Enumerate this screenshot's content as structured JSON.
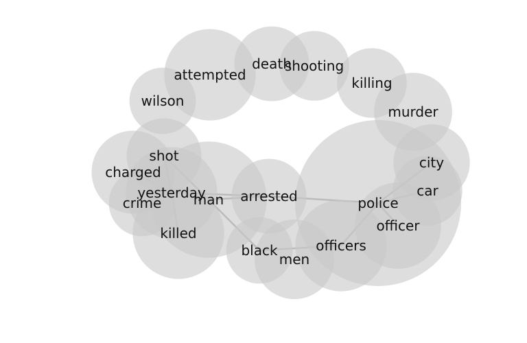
{
  "colors": {
    "bubble": "#c8c8c8",
    "edge": "#a9a9a9",
    "text": "#111111",
    "background": "#ffffff"
  },
  "diagram": {
    "type": "word-cooccurrence-bubble-network",
    "nodes": [
      {
        "id": "attempted",
        "label": "attempted",
        "weight": 0.55
      },
      {
        "id": "death",
        "label": "death",
        "weight": 0.45
      },
      {
        "id": "shooting",
        "label": "shooting",
        "weight": 0.42
      },
      {
        "id": "killing",
        "label": "killing",
        "weight": 0.42
      },
      {
        "id": "murder",
        "label": "murder",
        "weight": 0.47
      },
      {
        "id": "wilson",
        "label": "wilson",
        "weight": 0.4
      },
      {
        "id": "shot",
        "label": "shot",
        "weight": 0.45
      },
      {
        "id": "charged",
        "label": "charged",
        "weight": 0.5
      },
      {
        "id": "yesterday",
        "label": "yesterday",
        "weight": 0.55
      },
      {
        "id": "crime",
        "label": "crime",
        "weight": 0.4
      },
      {
        "id": "man",
        "label": "man",
        "weight": 0.7
      },
      {
        "id": "killed",
        "label": "killed",
        "weight": 0.55
      },
      {
        "id": "arrested",
        "label": "arrested",
        "weight": 0.45
      },
      {
        "id": "black",
        "label": "black",
        "weight": 0.4
      },
      {
        "id": "men",
        "label": "men",
        "weight": 0.48
      },
      {
        "id": "officers",
        "label": "officers",
        "weight": 0.55
      },
      {
        "id": "police",
        "label": "police",
        "weight": 1.0
      },
      {
        "id": "city",
        "label": "city",
        "weight": 0.46
      },
      {
        "id": "car",
        "label": "car",
        "weight": 0.42
      },
      {
        "id": "officer",
        "label": "officer",
        "weight": 0.52
      }
    ],
    "edges": [
      [
        "shot",
        "yesterday"
      ],
      [
        "shot",
        "man"
      ],
      [
        "charged",
        "yesterday"
      ],
      [
        "crime",
        "yesterday"
      ],
      [
        "killed",
        "yesterday"
      ],
      [
        "yesterday",
        "arrested"
      ],
      [
        "man",
        "arrested"
      ],
      [
        "man",
        "black"
      ],
      [
        "arrested",
        "police"
      ],
      [
        "black",
        "officers"
      ],
      [
        "officers",
        "police"
      ],
      [
        "police",
        "city"
      ],
      [
        "police",
        "car"
      ],
      [
        "police",
        "officer"
      ]
    ]
  }
}
